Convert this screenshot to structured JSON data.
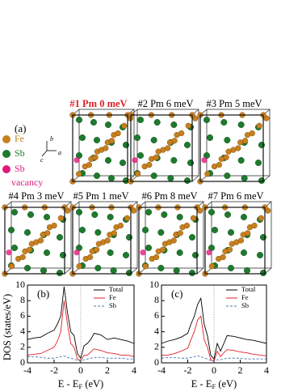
{
  "figure": {
    "panel_label": "(a)",
    "axes": [
      "b",
      "c",
      "a"
    ],
    "legend": [
      {
        "name": "Fe",
        "color": "#c8801e"
      },
      {
        "name": "Sb",
        "color": "#1e7a2e"
      },
      {
        "name": "Sb",
        "sublabel": "vacancy",
        "color": "#e0187a"
      }
    ],
    "structures": [
      {
        "label": "#1 Pm 0 meV",
        "highlight": true
      },
      {
        "label": "#2 Pm 6 meV",
        "highlight": false
      },
      {
        "label": "#3 Pm 5 meV",
        "highlight": false
      },
      {
        "label": "#4 Pm 3 meV",
        "highlight": false
      },
      {
        "label": "#5 Pm 1 meV",
        "highlight": false
      },
      {
        "label": "#6 Pm 8 meV",
        "highlight": false
      },
      {
        "label": "#7 Pm 6 meV",
        "highlight": false
      }
    ]
  },
  "chart_data": [
    {
      "type": "line",
      "label": "(b)",
      "ylabel": "DOS (states/eV)",
      "xlabel": {
        "main": "E - E",
        "sub": "F",
        "unit": " (eV)"
      },
      "x": [
        -4,
        -3.5,
        -3,
        -2.5,
        -2,
        -1.75,
        -1.5,
        -1.25,
        -1,
        -0.75,
        -0.5,
        -0.25,
        0,
        0.25,
        0.5,
        0.75,
        1,
        1.5,
        2,
        2.5,
        3,
        3.5,
        4
      ],
      "series": [
        {
          "name": "Total",
          "color": "#000000",
          "dashed": false,
          "values": [
            3,
            3.2,
            3.3,
            3.8,
            4.2,
            5,
            6,
            9.8,
            6.5,
            4,
            3.5,
            1.2,
            0.6,
            2.2,
            2.5,
            3,
            3.8,
            3.6,
            3,
            3.2,
            3,
            2.8,
            2.5
          ]
        },
        {
          "name": "Fe",
          "color": "#e0202a",
          "dashed": false,
          "values": [
            1,
            1.1,
            1.2,
            1.6,
            2,
            2.8,
            4,
            8,
            5,
            2.5,
            2,
            0.5,
            0.3,
            1,
            1,
            1.4,
            1.8,
            1.6,
            1.3,
            1.2,
            1,
            1,
            0.8
          ]
        },
        {
          "name": "Sb",
          "color": "#4a78b0",
          "dashed": true,
          "values": [
            0.8,
            0.8,
            0.7,
            0.6,
            0.6,
            0.7,
            0.8,
            0.9,
            0.7,
            0.6,
            0.5,
            0.3,
            0.2,
            0.4,
            0.5,
            0.6,
            0.7,
            0.7,
            0.6,
            0.6,
            0.6,
            0.5,
            0.5
          ]
        }
      ],
      "xlim": [
        -4,
        4
      ],
      "ylim": [
        0,
        10
      ],
      "xticks": [
        -4,
        -2,
        0,
        2,
        4
      ],
      "yticks": [
        0,
        2,
        4,
        6,
        8,
        10
      ]
    },
    {
      "type": "line",
      "label": "(c)",
      "xlabel": {
        "main": "E - E",
        "sub": "F",
        "unit": " (eV)"
      },
      "x": [
        -4,
        -3.5,
        -3,
        -2.5,
        -2,
        -1.75,
        -1.5,
        -1.25,
        -1,
        -0.75,
        -0.5,
        -0.25,
        0,
        0.25,
        0.5,
        0.75,
        1,
        1.5,
        2,
        2.5,
        3,
        3.5,
        4
      ],
      "series": [
        {
          "name": "Total",
          "color": "#000000",
          "dashed": false,
          "values": [
            2.5,
            2.8,
            3,
            3.3,
            3.8,
            5,
            6,
            7.5,
            8.3,
            5,
            3.5,
            1,
            0.5,
            2.5,
            1.5,
            2.5,
            3.5,
            3.4,
            3.2,
            3,
            2.9,
            2.7,
            2.5
          ]
        },
        {
          "name": "Fe",
          "color": "#e0202a",
          "dashed": false,
          "values": [
            1,
            1,
            1.2,
            1.5,
            1.9,
            3,
            4,
            5.5,
            6,
            3,
            2,
            0.4,
            0.2,
            1.5,
            0.8,
            1.3,
            1.7,
            1.6,
            1.4,
            1.3,
            1.1,
            1,
            0.9
          ]
        },
        {
          "name": "Sb",
          "color": "#4a78b0",
          "dashed": true,
          "values": [
            0.6,
            0.7,
            0.7,
            0.6,
            0.6,
            0.7,
            0.8,
            0.9,
            0.8,
            0.6,
            0.5,
            0.3,
            0.2,
            0.4,
            0.4,
            0.5,
            0.6,
            0.6,
            0.6,
            0.5,
            0.5,
            0.5,
            0.5
          ]
        }
      ],
      "xlim": [
        -4,
        4
      ],
      "ylim": [
        0,
        10
      ],
      "xticks": [
        -4,
        -2,
        0,
        2,
        4
      ],
      "yticks": [
        0,
        2,
        4,
        6,
        8,
        10
      ]
    }
  ]
}
